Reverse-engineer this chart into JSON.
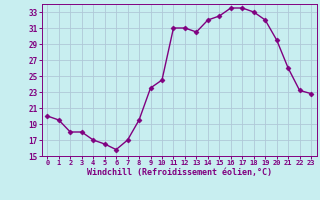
{
  "x": [
    0,
    1,
    2,
    3,
    4,
    5,
    6,
    7,
    8,
    9,
    10,
    11,
    12,
    13,
    14,
    15,
    16,
    17,
    18,
    19,
    20,
    21,
    22,
    23
  ],
  "y": [
    20.0,
    19.5,
    18.0,
    18.0,
    17.0,
    16.5,
    15.8,
    17.0,
    19.5,
    23.5,
    24.5,
    31.0,
    31.0,
    30.5,
    32.0,
    32.5,
    33.5,
    33.5,
    33.0,
    32.0,
    29.5,
    26.0,
    23.2,
    22.8
  ],
  "line_color": "#800080",
  "marker": "D",
  "marker_size": 2.5,
  "bg_color": "#c8eef0",
  "grid_color": "#b0c8d8",
  "xlabel": "Windchill (Refroidissement éolien,°C)",
  "xlabel_color": "#800080",
  "tick_color": "#800080",
  "ylim": [
    15,
    34
  ],
  "xlim_min": -0.5,
  "xlim_max": 23.5,
  "yticks": [
    15,
    17,
    19,
    21,
    23,
    25,
    27,
    29,
    31,
    33
  ],
  "xticks": [
    0,
    1,
    2,
    3,
    4,
    5,
    6,
    7,
    8,
    9,
    10,
    11,
    12,
    13,
    14,
    15,
    16,
    17,
    18,
    19,
    20,
    21,
    22,
    23
  ],
  "xtick_labels": [
    "0",
    "1",
    "2",
    "3",
    "4",
    "5",
    "6",
    "7",
    "8",
    "9",
    "10",
    "11",
    "12",
    "13",
    "14",
    "15",
    "16",
    "17",
    "18",
    "19",
    "20",
    "21",
    "22",
    "23"
  ],
  "ytick_labels": [
    "15",
    "17",
    "19",
    "21",
    "23",
    "25",
    "27",
    "29",
    "31",
    "33"
  ],
  "linewidth": 1.0
}
